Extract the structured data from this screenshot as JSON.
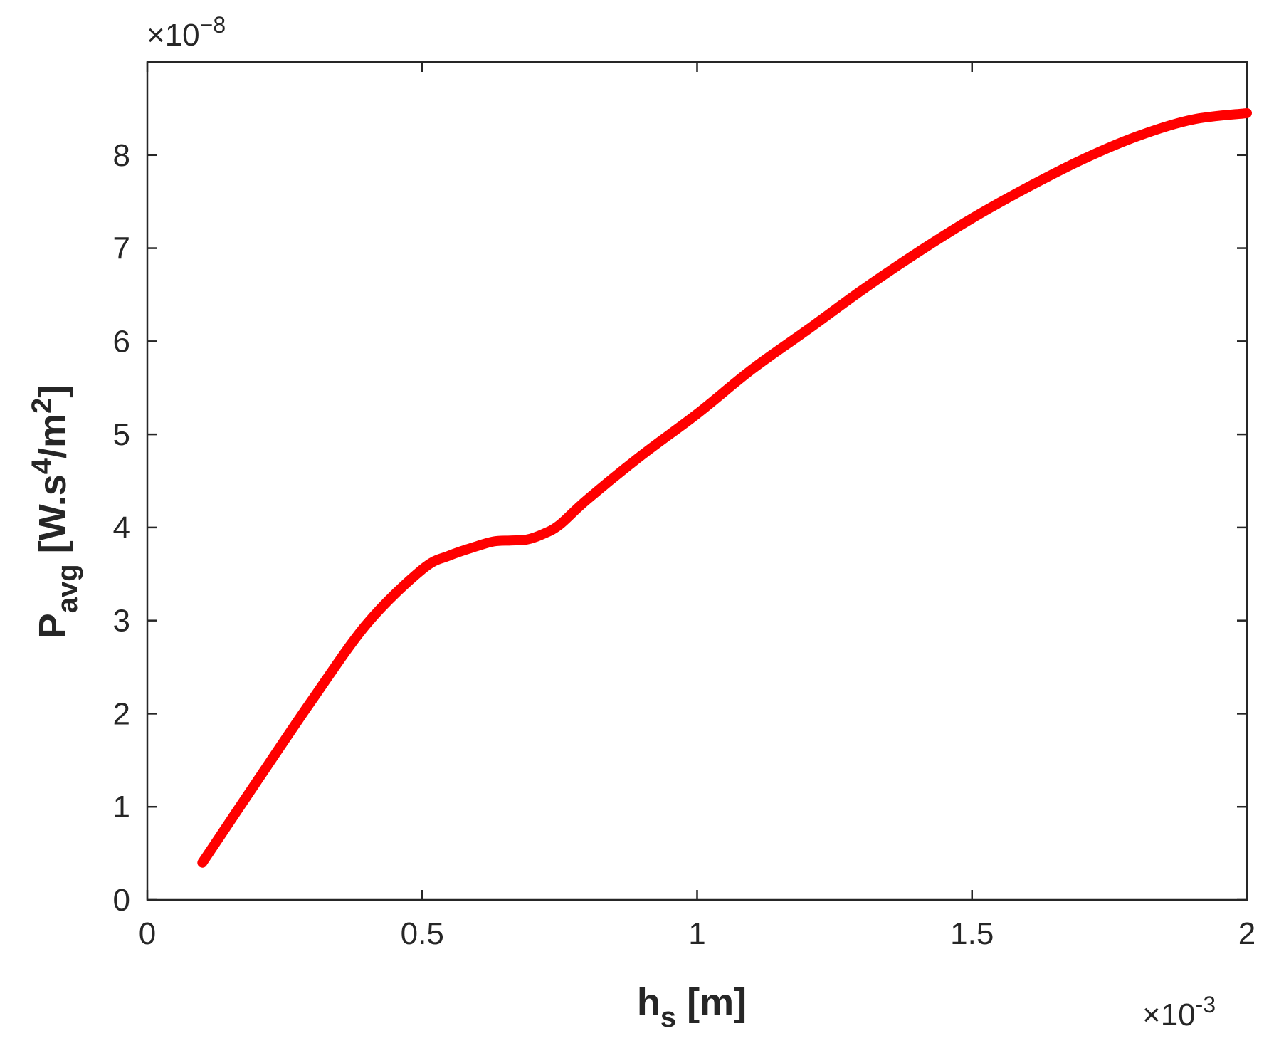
{
  "chart_data": {
    "type": "line",
    "title": "",
    "xlabel": {
      "main": "h",
      "sub": "s",
      "unit": " [m]"
    },
    "ylabel": {
      "main": "P",
      "sub": "avg",
      "unit_pre": " [W.s",
      "sup1": "4",
      "mid": "/m",
      "sup2": "2",
      "unit_post": "]"
    },
    "x_exponent": {
      "prefix": "×10",
      "power": "-3"
    },
    "y_exponent": {
      "prefix": "×10",
      "power": "−8"
    },
    "xlim": [
      0,
      2
    ],
    "ylim": [
      0,
      9
    ],
    "x_ticks": [
      0,
      0.5,
      1,
      1.5,
      2
    ],
    "x_tick_labels": [
      "0",
      "0.5",
      "1",
      "1.5",
      "2"
    ],
    "y_ticks": [
      0,
      1,
      2,
      3,
      4,
      5,
      6,
      7,
      8
    ],
    "y_tick_labels": [
      "0",
      "1",
      "2",
      "3",
      "4",
      "5",
      "6",
      "7",
      "8"
    ],
    "grid": false,
    "series": [
      {
        "color": "#ff0000",
        "x": [
          0.1,
          0.2,
          0.3,
          0.4,
          0.5,
          0.55,
          0.6,
          0.63,
          0.66,
          0.69,
          0.72,
          0.75,
          0.8,
          0.9,
          1.0,
          1.1,
          1.2,
          1.3,
          1.4,
          1.5,
          1.6,
          1.7,
          1.8,
          1.9,
          2.0
        ],
        "y": [
          0.4,
          1.28,
          2.15,
          2.97,
          3.55,
          3.7,
          3.8,
          3.85,
          3.86,
          3.87,
          3.93,
          4.03,
          4.3,
          4.78,
          5.22,
          5.7,
          6.12,
          6.55,
          6.95,
          7.32,
          7.65,
          7.95,
          8.2,
          8.38,
          8.45
        ]
      }
    ]
  }
}
